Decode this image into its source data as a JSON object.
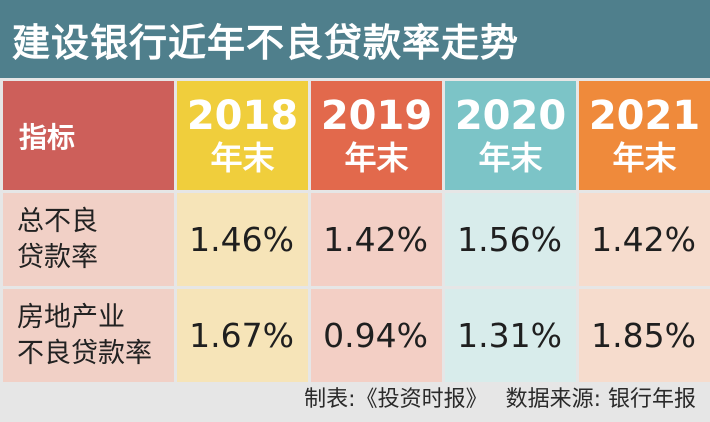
{
  "title": "建设银行近年不良贷款率走势",
  "header": {
    "indicator_label": "指标",
    "year_suffix": "年末",
    "years": [
      "2018",
      "2019",
      "2020",
      "2021"
    ]
  },
  "colors": {
    "title_bg": "#4f7f8c",
    "indicator_head": "#cd5f5a",
    "row_label_bg": "#f1d0c6",
    "year_heads": [
      "#f0ce3c",
      "#e2694c",
      "#7cc4c7",
      "#ef8a3b"
    ],
    "column_bodies": [
      "#f6e4b8",
      "#f3cfc5",
      "#d8eceb",
      "#f6dccd"
    ]
  },
  "rows": [
    {
      "label_line1": "总不良",
      "label_line2": "贷款率",
      "values": [
        "1.46%",
        "1.42%",
        "1.56%",
        "1.42%"
      ]
    },
    {
      "label_line1": "房地产业",
      "label_line2": "不良贷款率",
      "values": [
        "1.67%",
        "0.94%",
        "1.31%",
        "1.85%"
      ]
    }
  ],
  "footer": {
    "credit": "制表:《投资时报》",
    "source": "数据来源: 银行年报"
  },
  "chart_data": {
    "type": "table",
    "title": "建设银行近年不良贷款率走势",
    "columns": [
      "指标",
      "2018年末",
      "2019年末",
      "2020年末",
      "2021年末"
    ],
    "categories": [
      "2018年末",
      "2019年末",
      "2020年末",
      "2021年末"
    ],
    "series": [
      {
        "name": "总不良贷款率",
        "values": [
          1.46,
          1.42,
          1.56,
          1.42
        ]
      },
      {
        "name": "房地产业不良贷款率",
        "values": [
          1.67,
          0.94,
          1.31,
          1.85
        ]
      }
    ],
    "unit": "%"
  }
}
